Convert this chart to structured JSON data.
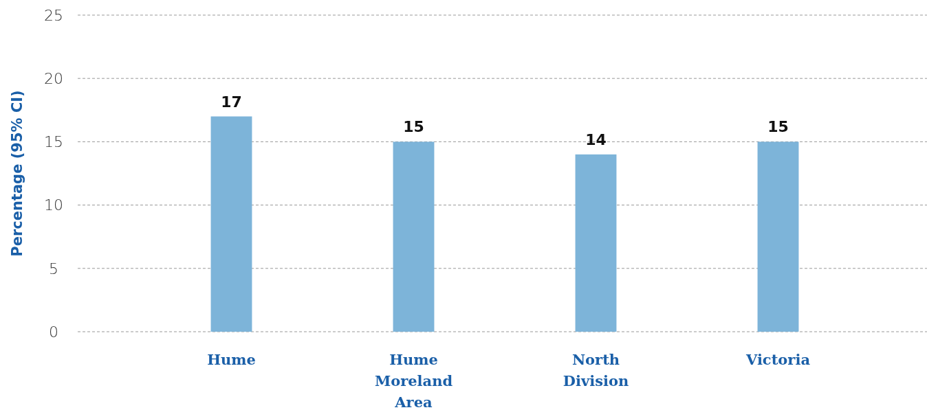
{
  "chart_data": {
    "type": "bar",
    "ylabel": "Percentage (95% CI)",
    "categories": [
      "Hume",
      "Hume Moreland Area",
      "North Division",
      "Victoria"
    ],
    "values": [
      17,
      15,
      14,
      15
    ],
    "color": "#7db4d9",
    "ylim": [
      0,
      25
    ],
    "yticks": [
      0,
      5,
      10,
      15,
      20,
      25
    ],
    "grid": "y",
    "data_labels": true
  }
}
